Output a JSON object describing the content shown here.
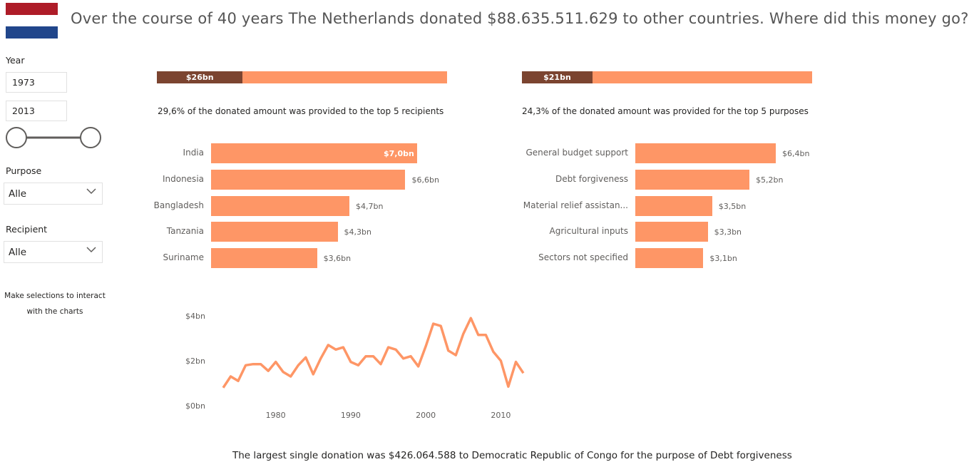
{
  "header": {
    "title": "Over the course of 40 years The Netherlands donated $88.635.511.629 to other countries. Where did this money go?",
    "flag_colors": [
      "#ae1c28",
      "#ffffff",
      "#21468b"
    ]
  },
  "filters": {
    "year_label": "Year",
    "year_start": "1973",
    "year_end": "2013",
    "purpose_label": "Purpose",
    "purpose_value": "Alle",
    "recipient_label": "Recipient",
    "recipient_value": "Alle",
    "hint": "Make selections to interact with the charts"
  },
  "recipients_panel": {
    "progress_label": "$26bn",
    "progress_fraction": 0.296,
    "subtitle": "29,6% of the donated amount was provided to the top 5 recipients"
  },
  "purposes_panel": {
    "progress_label": "$21bn",
    "progress_fraction": 0.243,
    "subtitle": "24,3% of the donated amount was provided for the top 5 purposes"
  },
  "footer": {
    "text": "The largest single donation was $426.064.588 to Democratic Republic of Congo for the purpose of Debt forgiveness"
  },
  "colors": {
    "bar": "#fe9666",
    "bar_dark": "#7b4430",
    "line": "#fe9666"
  },
  "chart_data": [
    {
      "type": "bar",
      "orientation": "horizontal",
      "categories": [
        "India",
        "Indonesia",
        "Bangladesh",
        "Tanzania",
        "Suriname"
      ],
      "values": [
        7.0,
        6.6,
        4.7,
        4.3,
        3.6
      ],
      "value_labels": [
        "$7,0bn",
        "$6,6bn",
        "$4,7bn",
        "$4,3bn",
        "$3,6bn"
      ],
      "unit": "bn USD"
    },
    {
      "type": "bar",
      "orientation": "horizontal",
      "categories": [
        "General budget support",
        "Debt forgiveness",
        "Material relief assistan...",
        "Agricultural inputs",
        "Sectors not specified"
      ],
      "values": [
        6.4,
        5.2,
        3.5,
        3.3,
        3.1
      ],
      "value_labels": [
        "$6,4bn",
        "$5,2bn",
        "$3,5bn",
        "$3,3bn",
        "$3,1bn"
      ],
      "unit": "bn USD"
    },
    {
      "type": "line",
      "x": [
        1973,
        1974,
        1975,
        1976,
        1977,
        1978,
        1979,
        1980,
        1981,
        1982,
        1983,
        1984,
        1985,
        1986,
        1987,
        1988,
        1989,
        1990,
        1991,
        1992,
        1993,
        1994,
        1995,
        1996,
        1997,
        1998,
        1999,
        2000,
        2001,
        2002,
        2003,
        2004,
        2005,
        2006,
        2007,
        2008,
        2009,
        2010,
        2011,
        2012,
        2013
      ],
      "y": [
        0.8,
        1.3,
        1.1,
        1.8,
        1.85,
        1.85,
        1.55,
        1.95,
        1.5,
        1.3,
        1.8,
        2.15,
        1.4,
        2.1,
        2.7,
        2.5,
        2.6,
        1.95,
        1.8,
        2.2,
        2.2,
        1.85,
        2.6,
        2.5,
        2.1,
        2.2,
        1.75,
        2.65,
        3.65,
        3.55,
        2.45,
        2.25,
        3.2,
        3.9,
        3.15,
        3.15,
        2.4,
        2.0,
        0.85,
        1.95,
        1.45
      ],
      "xticks": [
        "1980",
        "1990",
        "2000",
        "2010"
      ],
      "yticks": [
        "$0bn",
        "$2bn",
        "$4bn"
      ],
      "ylim": [
        0,
        4
      ],
      "grid": false
    }
  ]
}
